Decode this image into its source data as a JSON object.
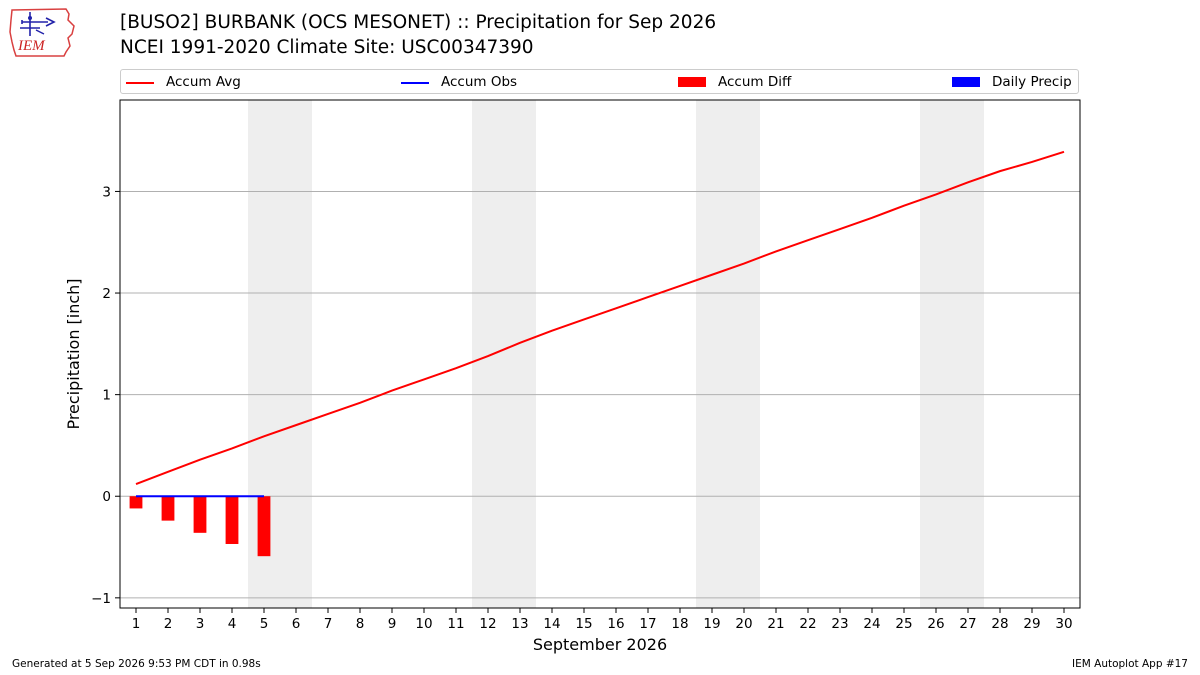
{
  "header": {
    "logo_text": "IEM",
    "title_line1": "[BUSO2] BURBANK (OCS MESONET) :: Precipitation for Sep 2026",
    "title_line2": "NCEI 1991-2020 Climate Site: USC00347390"
  },
  "footer": {
    "left": "Generated at 5 Sep 2026 9:53 PM CDT in 0.98s",
    "right": "IEM Autoplot App #17"
  },
  "colors": {
    "accum_avg": "#ff0000",
    "accum_obs": "#0000ff",
    "accum_diff": "#ff0000",
    "daily_precip": "#0000ff",
    "weekend_shade": "#eeeeee",
    "grid": "#b0b0b0"
  },
  "chart_data": {
    "type": "line",
    "xlabel": "September 2026",
    "ylabel": "Precipitation [inch]",
    "xlim": [
      0.5,
      30.5
    ],
    "ylim": [
      -1.1,
      3.9
    ],
    "yticks": [
      -1,
      0,
      1,
      2,
      3
    ],
    "ytick_labels": [
      "−1",
      "0",
      "1",
      "2",
      "3"
    ],
    "x_ticks": [
      1,
      2,
      3,
      4,
      5,
      6,
      7,
      8,
      9,
      10,
      11,
      12,
      13,
      14,
      15,
      16,
      17,
      18,
      19,
      20,
      21,
      22,
      23,
      24,
      25,
      26,
      27,
      28,
      29,
      30
    ],
    "x_tick_labels": [
      "1",
      "2",
      "3",
      "4",
      "5",
      "6",
      "7",
      "8",
      "9",
      "10",
      "11",
      "12",
      "13",
      "14",
      "15",
      "16",
      "17",
      "18",
      "19",
      "20",
      "21",
      "22",
      "23",
      "24",
      "25",
      "26",
      "27",
      "28",
      "29",
      "30"
    ],
    "grid": "horizontal",
    "legend_position": "top",
    "weekend_days": [
      5,
      6,
      12,
      13,
      19,
      20,
      26,
      27
    ],
    "legend": [
      {
        "label": "Accum Avg",
        "kind": "line",
        "color": "#ff0000"
      },
      {
        "label": "Accum Obs",
        "kind": "line",
        "color": "#0000ff"
      },
      {
        "label": "Accum Diff",
        "kind": "bar",
        "color": "#ff0000"
      },
      {
        "label": "Daily Precip",
        "kind": "bar",
        "color": "#0000ff"
      }
    ],
    "series": [
      {
        "name": "Accum Avg",
        "kind": "line",
        "x": [
          1,
          2,
          3,
          4,
          5,
          6,
          7,
          8,
          9,
          10,
          11,
          12,
          13,
          14,
          15,
          16,
          17,
          18,
          19,
          20,
          21,
          22,
          23,
          24,
          25,
          26,
          27,
          28,
          29,
          30
        ],
        "values": [
          0.12,
          0.24,
          0.36,
          0.47,
          0.59,
          0.7,
          0.81,
          0.92,
          1.04,
          1.15,
          1.26,
          1.38,
          1.51,
          1.63,
          1.74,
          1.85,
          1.96,
          2.07,
          2.18,
          2.29,
          2.41,
          2.52,
          2.63,
          2.74,
          2.86,
          2.97,
          3.09,
          3.2,
          3.29,
          3.39
        ]
      },
      {
        "name": "Accum Obs",
        "kind": "line",
        "x": [
          1,
          2,
          3,
          4,
          5
        ],
        "values": [
          0.0,
          0.0,
          0.0,
          0.0,
          0.0
        ]
      },
      {
        "name": "Accum Diff",
        "kind": "bar",
        "x": [
          1,
          2,
          3,
          4,
          5
        ],
        "values": [
          -0.12,
          -0.24,
          -0.36,
          -0.47,
          -0.59
        ]
      },
      {
        "name": "Daily Precip",
        "kind": "bar",
        "x": [
          1,
          2,
          3,
          4,
          5
        ],
        "values": [
          0.0,
          0.0,
          0.0,
          0.0,
          0.0
        ]
      }
    ]
  }
}
